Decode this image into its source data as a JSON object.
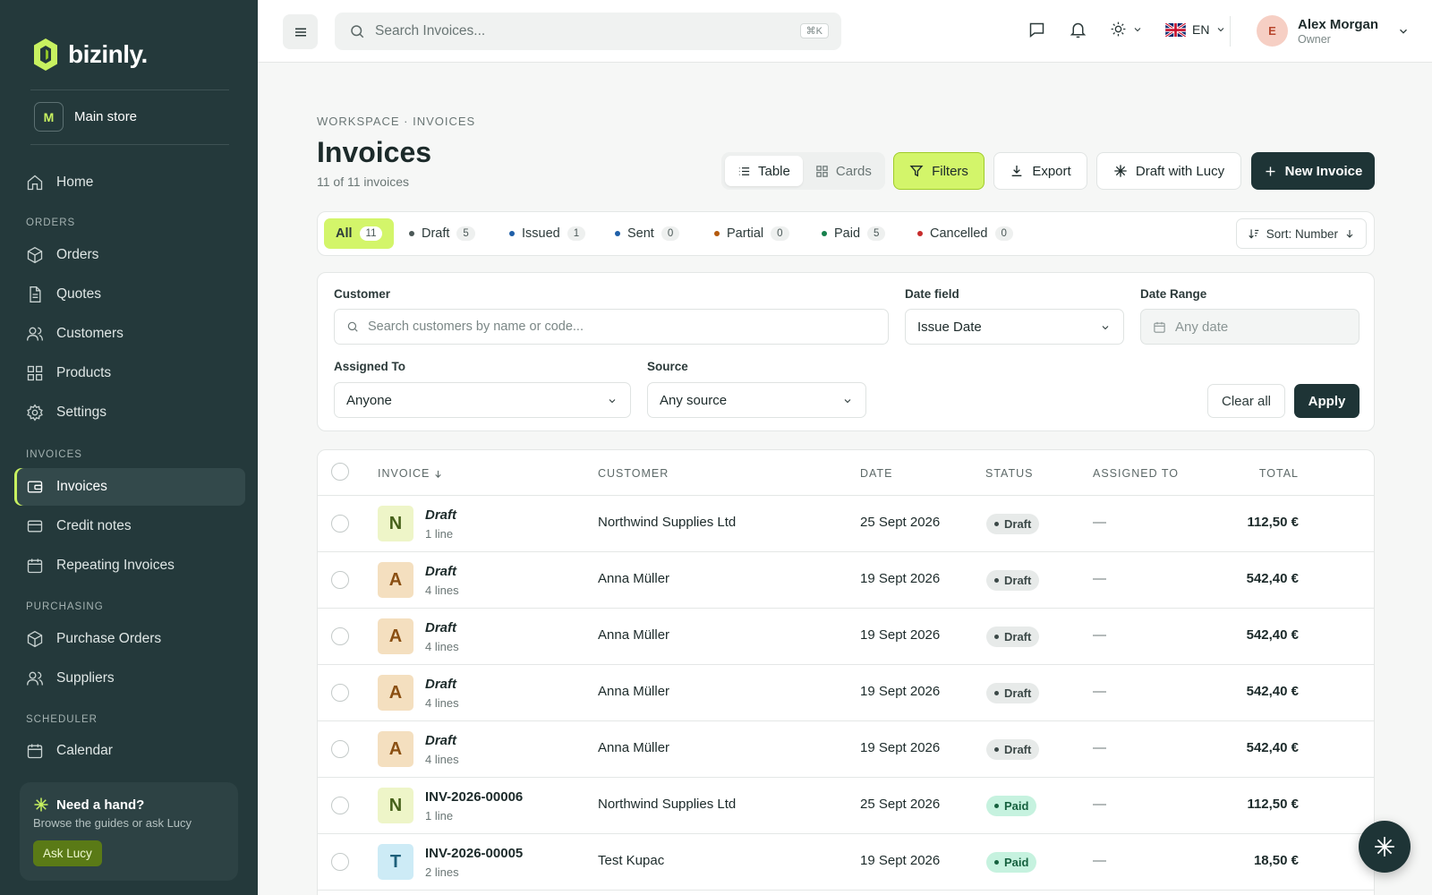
{
  "brand": {
    "name": "bizinly.",
    "accent": "#c8f160"
  },
  "store": {
    "initial": "M",
    "name": "Main store"
  },
  "sidebar": {
    "home": "Home",
    "sections": {
      "orders": "ORDERS",
      "invoices": "INVOICES",
      "purchasing": "PURCHASING",
      "scheduler": "SCHEDULER"
    },
    "items": {
      "orders": "Orders",
      "quotes": "Quotes",
      "customers": "Customers",
      "products": "Products",
      "settings": "Settings",
      "invoices": "Invoices",
      "credit_notes": "Credit notes",
      "repeating": "Repeating Invoices",
      "purchase_orders": "Purchase Orders",
      "suppliers": "Suppliers",
      "calendar": "Calendar"
    },
    "help": {
      "title": "Need a hand?",
      "subtitle": "Browse the guides or ask Lucy",
      "button": "Ask Lucy"
    }
  },
  "topbar": {
    "search_placeholder": "Search Invoices...",
    "shortcut": "⌘K",
    "language": "EN",
    "user": {
      "initial": "E",
      "name": "Alex Morgan",
      "role": "Owner"
    }
  },
  "page": {
    "breadcrumb": "WORKSPACE · INVOICES",
    "title": "Invoices",
    "subtitle": "11 of 11 invoices",
    "view": {
      "table": "Table",
      "cards": "Cards"
    },
    "buttons": {
      "filters": "Filters",
      "export": "Export",
      "draft": "Draft with Lucy",
      "new": "New Invoice"
    }
  },
  "status_filters": [
    {
      "label": "All",
      "count": "11",
      "color": ""
    },
    {
      "label": "Draft",
      "count": "5",
      "color": "#4b5857"
    },
    {
      "label": "Issued",
      "count": "1",
      "color": "#1f5fa8"
    },
    {
      "label": "Sent",
      "count": "0",
      "color": "#1f5fa8"
    },
    {
      "label": "Partial",
      "count": "0",
      "color": "#b45a0e"
    },
    {
      "label": "Paid",
      "count": "5",
      "color": "#16804c"
    },
    {
      "label": "Cancelled",
      "count": "0",
      "color": "#c72c2c"
    }
  ],
  "sort_label": "Sort: Number",
  "filters": {
    "customer_label": "Customer",
    "customer_placeholder": "Search customers by name or code...",
    "date_field_label": "Date field",
    "date_field_value": "Issue Date",
    "date_range_label": "Date Range",
    "date_range_placeholder": "Any date",
    "assigned_label": "Assigned To",
    "assigned_value": "Anyone",
    "source_label": "Source",
    "source_value": "Any source",
    "clear": "Clear all",
    "apply": "Apply"
  },
  "table": {
    "columns": {
      "invoice": "INVOICE",
      "customer": "CUSTOMER",
      "date": "DATE",
      "status": "STATUS",
      "assigned": "ASSIGNED TO",
      "total": "TOTAL"
    },
    "rows": [
      {
        "initial": "N",
        "avatar_bg": "#eef5c8",
        "avatar_fg": "#46611a",
        "number": "Draft",
        "lines": "1 line",
        "customer": "Northwind Supplies Ltd",
        "date": "25 Sept 2026",
        "status": "Draft",
        "status_kind": "draft",
        "assigned": "—",
        "total": "112,50 €"
      },
      {
        "initial": "A",
        "avatar_bg": "#f4dfbf",
        "avatar_fg": "#8a4f12",
        "number": "Draft",
        "lines": "4 lines",
        "customer": "Anna Müller",
        "date": "19 Sept 2026",
        "status": "Draft",
        "status_kind": "draft",
        "assigned": "—",
        "total": "542,40 €"
      },
      {
        "initial": "A",
        "avatar_bg": "#f4dfbf",
        "avatar_fg": "#8a4f12",
        "number": "Draft",
        "lines": "4 lines",
        "customer": "Anna Müller",
        "date": "19 Sept 2026",
        "status": "Draft",
        "status_kind": "draft",
        "assigned": "—",
        "total": "542,40 €"
      },
      {
        "initial": "A",
        "avatar_bg": "#f4dfbf",
        "avatar_fg": "#8a4f12",
        "number": "Draft",
        "lines": "4 lines",
        "customer": "Anna Müller",
        "date": "19 Sept 2026",
        "status": "Draft",
        "status_kind": "draft",
        "assigned": "—",
        "total": "542,40 €"
      },
      {
        "initial": "A",
        "avatar_bg": "#f4dfbf",
        "avatar_fg": "#8a4f12",
        "number": "Draft",
        "lines": "4 lines",
        "customer": "Anna Müller",
        "date": "19 Sept 2026",
        "status": "Draft",
        "status_kind": "draft",
        "assigned": "—",
        "total": "542,40 €"
      },
      {
        "initial": "N",
        "avatar_bg": "#eef5c8",
        "avatar_fg": "#46611a",
        "number": "INV-2026-00006",
        "lines": "1 line",
        "customer": "Northwind Supplies Ltd",
        "date": "25 Sept 2026",
        "status": "Paid",
        "status_kind": "paid",
        "assigned": "—",
        "total": "112,50 €"
      },
      {
        "initial": "T",
        "avatar_bg": "#cdebf6",
        "avatar_fg": "#1d5f7a",
        "number": "INV-2026-00005",
        "lines": "2 lines",
        "customer": "Test Kupac",
        "date": "19 Sept 2026",
        "status": "Paid",
        "status_kind": "paid",
        "assigned": "—",
        "total": "18,50 €"
      }
    ]
  }
}
